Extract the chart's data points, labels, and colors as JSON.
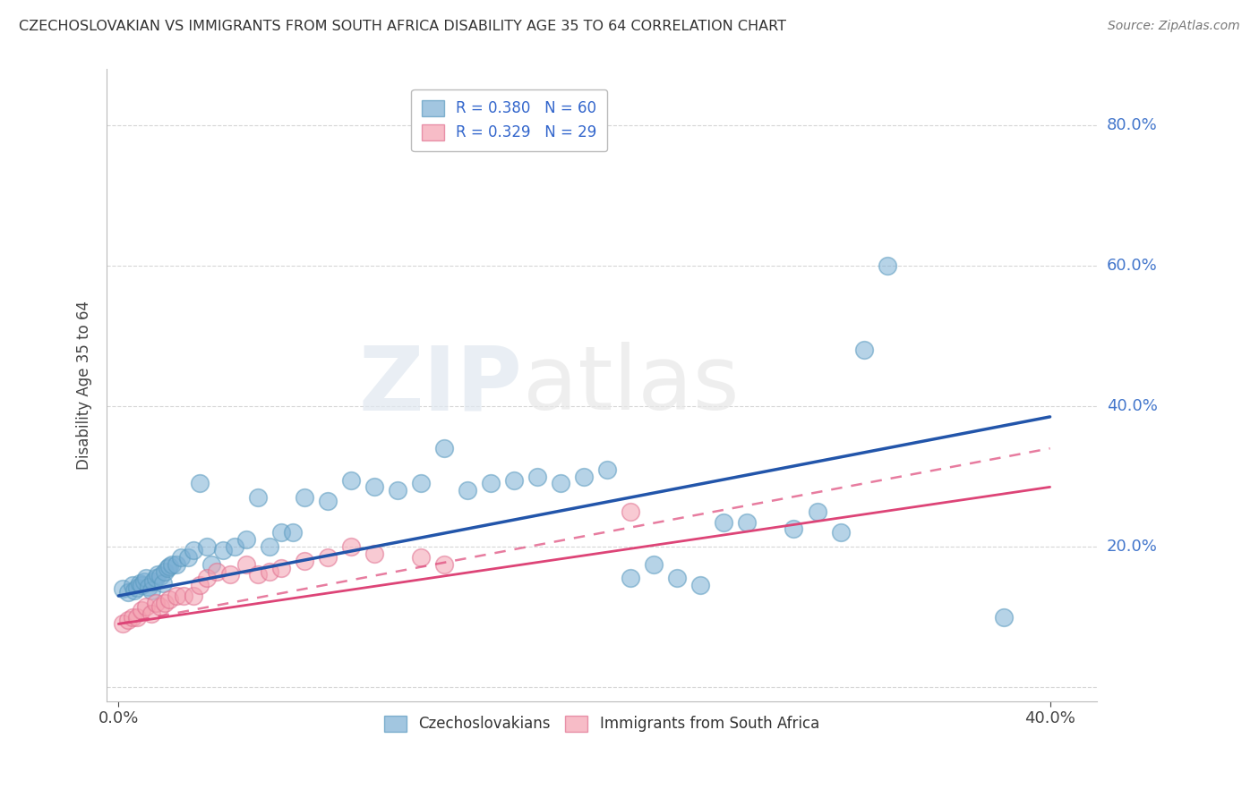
{
  "title": "CZECHOSLOVAKIAN VS IMMIGRANTS FROM SOUTH AFRICA DISABILITY AGE 35 TO 64 CORRELATION CHART",
  "source": "Source: ZipAtlas.com",
  "ylabel": "Disability Age 35 to 64",
  "xlim": [
    -0.005,
    0.42
  ],
  "ylim": [
    -0.02,
    0.88
  ],
  "yticks": [
    0.0,
    0.2,
    0.4,
    0.6,
    0.8
  ],
  "ytick_labels": [
    "",
    "20.0%",
    "40.0%",
    "60.0%",
    "80.0%"
  ],
  "xticks": [
    0.0,
    0.4
  ],
  "xtick_labels": [
    "0.0%",
    "40.0%"
  ],
  "legend1_R": "0.380",
  "legend1_N": "60",
  "legend2_R": "0.329",
  "legend2_N": "29",
  "blue_color": "#7BAFD4",
  "blue_edge_color": "#5A9ABF",
  "pink_color": "#F4A0B0",
  "pink_edge_color": "#E07090",
  "blue_line_color": "#2255AA",
  "pink_line_color": "#DD4477",
  "background_color": "#FFFFFF",
  "blue_scatter_x": [
    0.002,
    0.004,
    0.006,
    0.007,
    0.008,
    0.009,
    0.01,
    0.011,
    0.012,
    0.013,
    0.014,
    0.015,
    0.016,
    0.017,
    0.018,
    0.019,
    0.02,
    0.021,
    0.022,
    0.023,
    0.025,
    0.027,
    0.03,
    0.032,
    0.035,
    0.038,
    0.04,
    0.045,
    0.05,
    0.055,
    0.06,
    0.065,
    0.07,
    0.075,
    0.08,
    0.09,
    0.1,
    0.11,
    0.12,
    0.13,
    0.14,
    0.15,
    0.16,
    0.17,
    0.18,
    0.19,
    0.2,
    0.21,
    0.22,
    0.23,
    0.24,
    0.25,
    0.26,
    0.27,
    0.29,
    0.3,
    0.31,
    0.32,
    0.33,
    0.38
  ],
  "blue_scatter_y": [
    0.14,
    0.135,
    0.145,
    0.138,
    0.142,
    0.148,
    0.145,
    0.15,
    0.155,
    0.143,
    0.138,
    0.15,
    0.155,
    0.16,
    0.158,
    0.148,
    0.165,
    0.17,
    0.172,
    0.175,
    0.175,
    0.185,
    0.185,
    0.195,
    0.29,
    0.2,
    0.175,
    0.195,
    0.2,
    0.21,
    0.27,
    0.2,
    0.22,
    0.22,
    0.27,
    0.265,
    0.295,
    0.285,
    0.28,
    0.29,
    0.34,
    0.28,
    0.29,
    0.295,
    0.3,
    0.29,
    0.3,
    0.31,
    0.155,
    0.175,
    0.155,
    0.145,
    0.235,
    0.235,
    0.225,
    0.25,
    0.22,
    0.48,
    0.6,
    0.1
  ],
  "pink_scatter_x": [
    0.002,
    0.004,
    0.006,
    0.008,
    0.01,
    0.012,
    0.014,
    0.016,
    0.018,
    0.02,
    0.022,
    0.025,
    0.028,
    0.032,
    0.035,
    0.038,
    0.042,
    0.048,
    0.055,
    0.06,
    0.065,
    0.07,
    0.08,
    0.09,
    0.1,
    0.11,
    0.13,
    0.14,
    0.22
  ],
  "pink_scatter_y": [
    0.09,
    0.095,
    0.1,
    0.1,
    0.11,
    0.115,
    0.105,
    0.12,
    0.115,
    0.12,
    0.125,
    0.13,
    0.13,
    0.13,
    0.145,
    0.155,
    0.165,
    0.16,
    0.175,
    0.16,
    0.165,
    0.17,
    0.18,
    0.185,
    0.2,
    0.19,
    0.185,
    0.175,
    0.25
  ],
  "blue_line_x": [
    0.0,
    0.4
  ],
  "blue_line_y": [
    0.13,
    0.385
  ],
  "pink_solid_line_x": [
    0.0,
    0.4
  ],
  "pink_solid_line_y": [
    0.09,
    0.285
  ],
  "pink_dashed_line_x": [
    0.0,
    0.4
  ],
  "pink_dashed_line_y": [
    0.09,
    0.34
  ]
}
